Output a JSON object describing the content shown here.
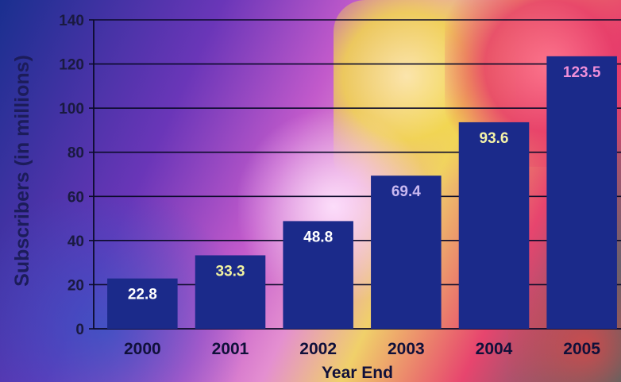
{
  "chart_data": {
    "type": "bar",
    "title": "",
    "xlabel": "Year End",
    "ylabel": "Subscribers (in millions)",
    "ylim": [
      0,
      140
    ],
    "yticks": [
      0,
      20,
      40,
      60,
      80,
      100,
      120,
      140
    ],
    "grid": true,
    "categories": [
      "2000",
      "2001",
      "2002",
      "2003",
      "2004",
      "2005"
    ],
    "values": [
      22.8,
      33.3,
      48.8,
      69.4,
      93.6,
      123.5
    ],
    "bar_color": "#1b2a8a",
    "label_colors": [
      "#ffffff",
      "#f2f2a0",
      "#ffffff",
      "#c9b8f0",
      "#f4f2a8",
      "#f08fd8"
    ]
  }
}
